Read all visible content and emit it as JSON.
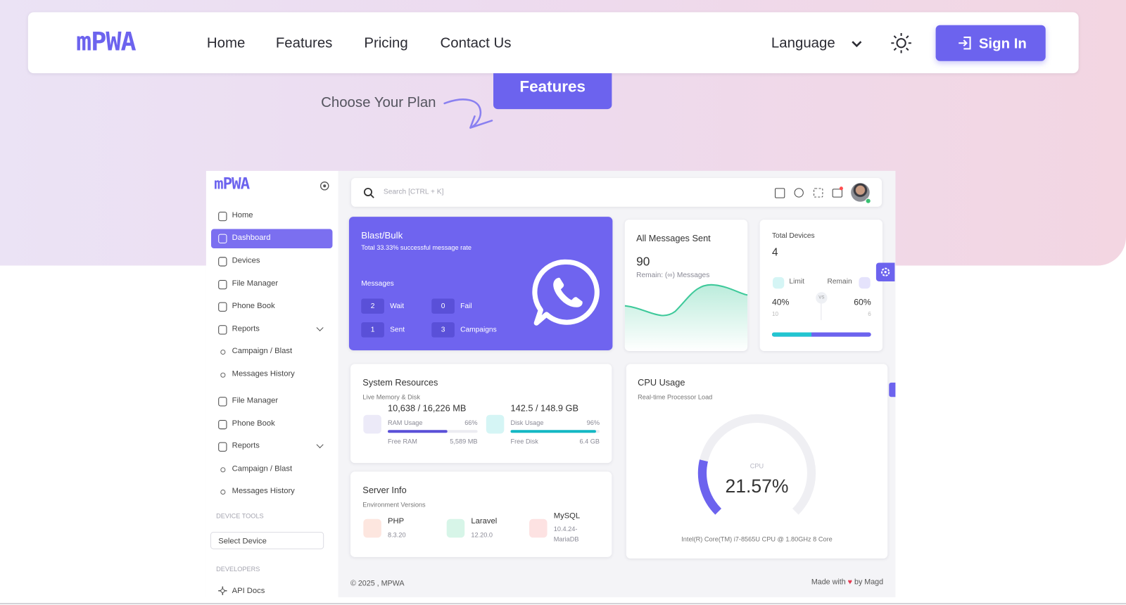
{
  "navbar": {
    "logo": "mPWA",
    "links": [
      "Home",
      "Features",
      "Pricing",
      "Contact Us"
    ],
    "language": "Language",
    "sign_in": "Sign In"
  },
  "hero": {
    "button": "Features",
    "tagline": "Choose Your Plan"
  },
  "dashboard": {
    "sidebar": {
      "logo": "mPWA",
      "items": [
        "Home",
        "Dashboard",
        "Devices",
        "File Manager",
        "Phone Book",
        "Reports",
        "Campaign / Blast",
        "Messages History",
        "File Manager",
        "Phone Book",
        "Reports",
        "Campaign / Blast",
        "Messages History"
      ],
      "device_tools": "DEVICE TOOLS",
      "select_device": "Select Device",
      "developers": "DEVELOPERS",
      "api_docs": "API Docs"
    },
    "search": "Search [CTRL + K]",
    "blast": {
      "title": "Blast/Bulk",
      "subtitle": "Total 33.33% successful message rate",
      "messages": "Messages",
      "stats": [
        {
          "value": 2,
          "label": "Wait"
        },
        {
          "value": 0,
          "label": "Fail"
        },
        {
          "value": 1,
          "label": "Sent"
        },
        {
          "value": 3,
          "label": "Campaigns"
        }
      ]
    },
    "messages_sent": {
      "title": "All Messages Sent",
      "value": 90,
      "remain": "Remain: (∞) Messages"
    },
    "devices": {
      "title": "Total Devices",
      "value": 4,
      "limit_label": "Limit",
      "remain_label": "Remain",
      "limit_percent": "40%",
      "remain_percent": "60%",
      "limit_count": 10,
      "remain_count": 6,
      "vs": "VS"
    },
    "system": {
      "title": "System Resources",
      "subtitle": "Live Memory & Disk",
      "ram": {
        "amount": "10,638 / 16,226 MB",
        "label": "RAM Usage",
        "percent": "66%",
        "free_label": "Free RAM",
        "free": "5,589 MB"
      },
      "disk": {
        "amount": "142.5 / 148.9 GB",
        "label": "Disk Usage",
        "percent": "96%",
        "free_label": "Free Disk",
        "free": "6.4 GB"
      }
    },
    "server": {
      "title": "Server Info",
      "subtitle": "Environment Versions",
      "items": [
        {
          "name": "PHP",
          "version": "8.3.20"
        },
        {
          "name": "Laravel",
          "version": "12.20.0"
        },
        {
          "name": "MySQL",
          "version": "10.4.24-",
          "version2": "MariaDB"
        }
      ]
    },
    "cpu": {
      "title": "CPU Usage",
      "subtitle": "Real-time Processor Load",
      "label": "CPU",
      "value": "21.57%",
      "processor": "Intel(R) Core(TM) i7-8565U CPU @ 1.80GHz 8 Core"
    },
    "footer": {
      "copyright": "© 2025 , MPWA",
      "made_with": "Made with",
      "by": "by Magd"
    }
  }
}
